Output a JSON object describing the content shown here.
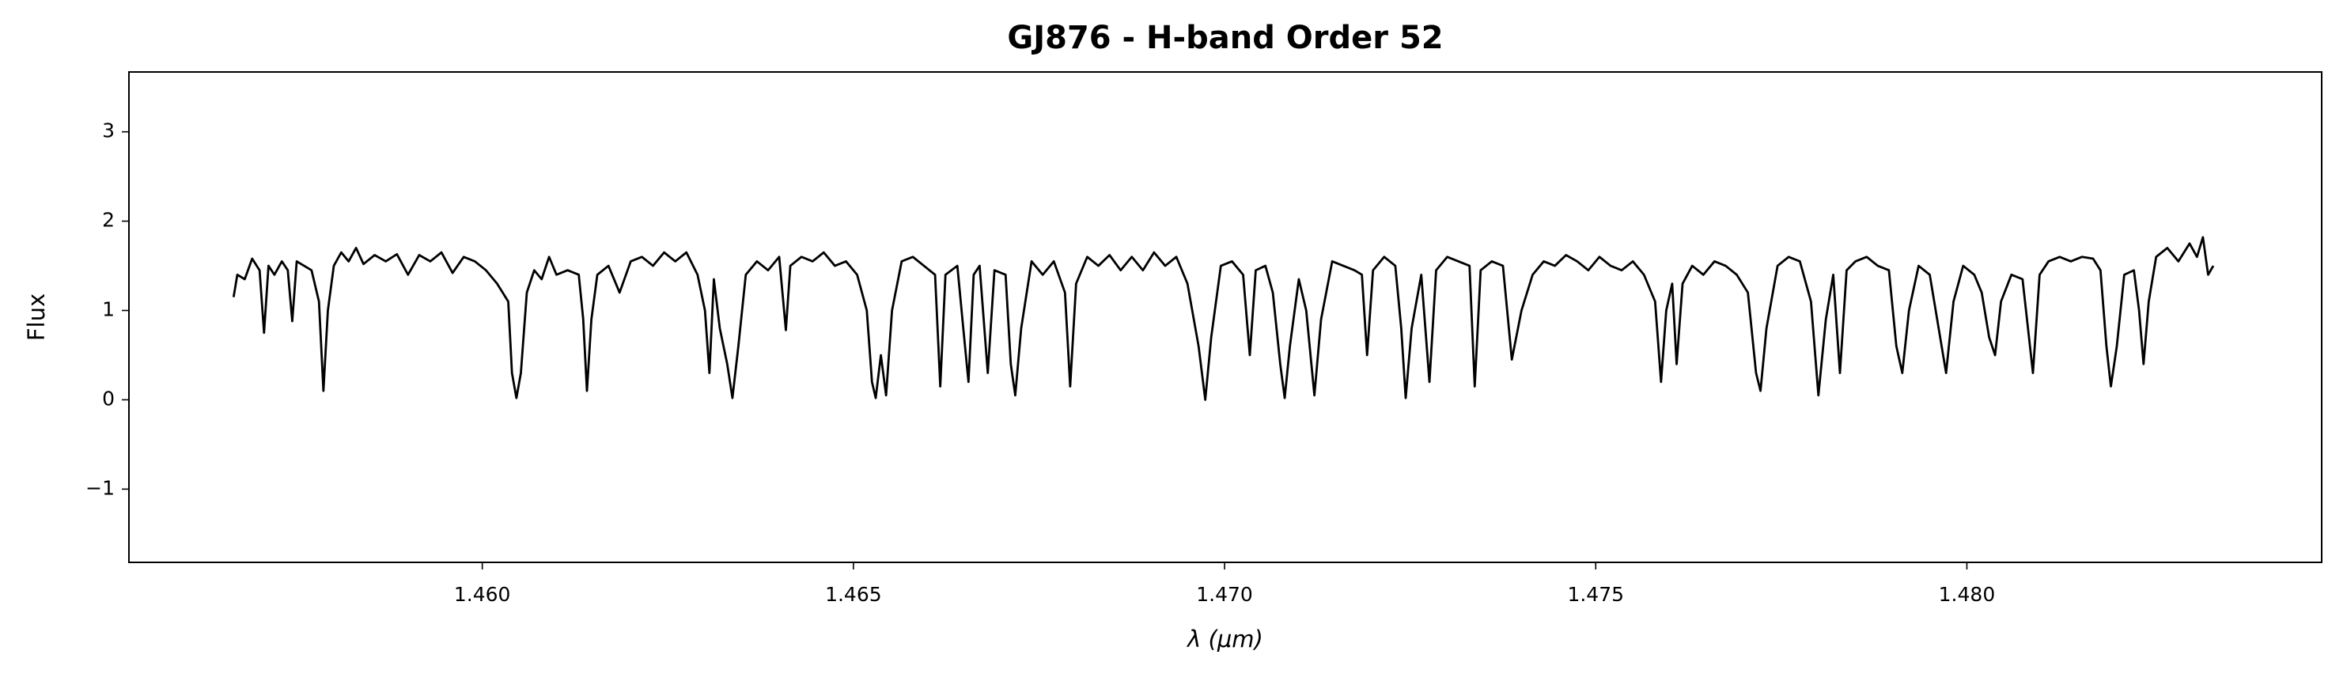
{
  "chart_data": {
    "type": "line",
    "title": "GJ876 - H-band Order 52",
    "x_label": "λ (μm)",
    "y_label": "Flux",
    "color": "#000000",
    "xlim": [
      1.45524,
      1.48478
    ],
    "ylim": [
      -1.82,
      3.67
    ],
    "xticks": [
      {
        "value": 1.46,
        "label": "1.460"
      },
      {
        "value": 1.465,
        "label": "1.465"
      },
      {
        "value": 1.47,
        "label": "1.470"
      },
      {
        "value": 1.475,
        "label": "1.475"
      },
      {
        "value": 1.48,
        "label": "1.480"
      }
    ],
    "yticks": [
      {
        "value": -1,
        "label": "−1"
      },
      0,
      1,
      2,
      3
    ],
    "x": [
      1.45665,
      1.4567,
      1.4568,
      1.4569,
      1.457,
      1.45706,
      1.45712,
      1.4572,
      1.4573,
      1.45738,
      1.45744,
      1.4575,
      1.4576,
      1.4577,
      1.4578,
      1.45786,
      1.45792,
      1.458,
      1.4581,
      1.4582,
      1.4583,
      1.4584,
      1.45855,
      1.4587,
      1.45885,
      1.459,
      1.45915,
      1.4593,
      1.45945,
      1.4596,
      1.45975,
      1.4599,
      1.46005,
      1.4602,
      1.46035,
      1.4604,
      1.46046,
      1.46052,
      1.4606,
      1.4607,
      1.4608,
      1.4609,
      1.461,
      1.46115,
      1.4613,
      1.46136,
      1.46141,
      1.46147,
      1.46155,
      1.4617,
      1.46185,
      1.462,
      1.46215,
      1.4623,
      1.46245,
      1.4626,
      1.46275,
      1.4629,
      1.463,
      1.46306,
      1.46312,
      1.4632,
      1.4633,
      1.46337,
      1.46345,
      1.46355,
      1.4637,
      1.46385,
      1.464,
      1.46409,
      1.46415,
      1.4643,
      1.46445,
      1.4646,
      1.46475,
      1.4649,
      1.46505,
      1.46518,
      1.46525,
      1.4653,
      1.46537,
      1.46544,
      1.46552,
      1.46565,
      1.4658,
      1.46595,
      1.4661,
      1.46617,
      1.46624,
      1.4664,
      1.46648,
      1.46655,
      1.46662,
      1.4667,
      1.46681,
      1.4669,
      1.46705,
      1.46712,
      1.46718,
      1.46726,
      1.4674,
      1.46755,
      1.4677,
      1.46785,
      1.46792,
      1.468,
      1.46815,
      1.4683,
      1.46845,
      1.4686,
      1.46875,
      1.4689,
      1.46905,
      1.4692,
      1.46935,
      1.4695,
      1.46965,
      1.46974,
      1.46982,
      1.46995,
      1.4701,
      1.47025,
      1.47034,
      1.47042,
      1.47055,
      1.47065,
      1.47075,
      1.47081,
      1.47088,
      1.471,
      1.4711,
      1.47121,
      1.4713,
      1.47145,
      1.4716,
      1.47175,
      1.47185,
      1.47192,
      1.472,
      1.47215,
      1.4723,
      1.47238,
      1.47244,
      1.47252,
      1.47265,
      1.47276,
      1.47285,
      1.473,
      1.47315,
      1.4733,
      1.47337,
      1.47345,
      1.4736,
      1.47375,
      1.47387,
      1.474,
      1.47415,
      1.4743,
      1.47445,
      1.4746,
      1.47475,
      1.4749,
      1.47505,
      1.4752,
      1.47535,
      1.4755,
      1.47565,
      1.4758,
      1.47588,
      1.47595,
      1.47603,
      1.47609,
      1.47617,
      1.4763,
      1.47645,
      1.4766,
      1.47675,
      1.4769,
      1.47705,
      1.47716,
      1.47722,
      1.4773,
      1.47745,
      1.4776,
      1.47775,
      1.4779,
      1.478,
      1.4781,
      1.4782,
      1.47829,
      1.47838,
      1.4785,
      1.47865,
      1.4788,
      1.47895,
      1.47905,
      1.47913,
      1.47922,
      1.47935,
      1.4795,
      1.47962,
      1.47972,
      1.47982,
      1.47995,
      1.4801,
      1.4802,
      1.4803,
      1.48038,
      1.48046,
      1.4806,
      1.48075,
      1.48089,
      1.48098,
      1.4811,
      1.48125,
      1.4814,
      1.48155,
      1.4817,
      1.4818,
      1.48188,
      1.48194,
      1.48202,
      1.48212,
      1.48225,
      1.48232,
      1.48238,
      1.48245,
      1.48255,
      1.4827,
      1.48285,
      1.483,
      1.4831,
      1.48318,
      1.48325,
      1.48332
    ],
    "values": [
      1.15,
      1.4,
      1.35,
      1.58,
      1.45,
      0.75,
      1.5,
      1.4,
      1.55,
      1.45,
      0.88,
      1.55,
      1.5,
      1.45,
      1.1,
      0.1,
      1.0,
      1.5,
      1.65,
      1.55,
      1.7,
      1.52,
      1.62,
      1.55,
      1.63,
      1.4,
      1.62,
      1.55,
      1.65,
      1.42,
      1.6,
      1.55,
      1.45,
      1.3,
      1.1,
      0.3,
      0.02,
      0.3,
      1.2,
      1.45,
      1.35,
      1.6,
      1.4,
      1.45,
      1.4,
      0.9,
      0.1,
      0.9,
      1.4,
      1.5,
      1.2,
      1.55,
      1.6,
      1.5,
      1.65,
      1.55,
      1.65,
      1.4,
      1.0,
      0.3,
      1.35,
      0.8,
      0.4,
      0.02,
      0.6,
      1.4,
      1.55,
      1.45,
      1.6,
      0.78,
      1.5,
      1.6,
      1.55,
      1.65,
      1.5,
      1.55,
      1.4,
      1.0,
      0.2,
      0.02,
      0.5,
      0.05,
      1.0,
      1.55,
      1.6,
      1.5,
      1.4,
      0.15,
      1.4,
      1.5,
      0.8,
      0.2,
      1.4,
      1.5,
      0.3,
      1.45,
      1.4,
      0.4,
      0.05,
      0.8,
      1.55,
      1.4,
      1.55,
      1.2,
      0.15,
      1.3,
      1.6,
      1.5,
      1.62,
      1.45,
      1.6,
      1.45,
      1.65,
      1.5,
      1.6,
      1.3,
      0.6,
      0.0,
      0.7,
      1.5,
      1.55,
      1.4,
      0.5,
      1.45,
      1.5,
      1.2,
      0.4,
      0.02,
      0.6,
      1.35,
      1.0,
      0.05,
      0.9,
      1.55,
      1.5,
      1.45,
      1.4,
      0.5,
      1.45,
      1.6,
      1.5,
      0.8,
      0.02,
      0.8,
      1.4,
      0.2,
      1.45,
      1.6,
      1.55,
      1.5,
      0.15,
      1.45,
      1.55,
      1.5,
      0.45,
      1.0,
      1.4,
      1.55,
      1.5,
      1.62,
      1.55,
      1.45,
      1.6,
      1.5,
      1.45,
      1.55,
      1.4,
      1.1,
      0.2,
      1.0,
      1.3,
      0.4,
      1.3,
      1.5,
      1.4,
      1.55,
      1.5,
      1.4,
      1.2,
      0.3,
      0.1,
      0.8,
      1.5,
      1.6,
      1.55,
      1.1,
      0.05,
      0.9,
      1.4,
      0.3,
      1.45,
      1.55,
      1.6,
      1.5,
      1.45,
      0.6,
      0.3,
      1.0,
      1.5,
      1.4,
      0.8,
      0.3,
      1.1,
      1.5,
      1.4,
      1.2,
      0.7,
      0.5,
      1.1,
      1.4,
      1.35,
      0.3,
      1.4,
      1.55,
      1.6,
      1.55,
      1.6,
      1.58,
      1.45,
      0.6,
      0.15,
      0.6,
      1.4,
      1.45,
      1.0,
      0.4,
      1.1,
      1.6,
      1.7,
      1.55,
      1.75,
      1.6,
      1.82,
      1.4,
      1.5
    ]
  }
}
